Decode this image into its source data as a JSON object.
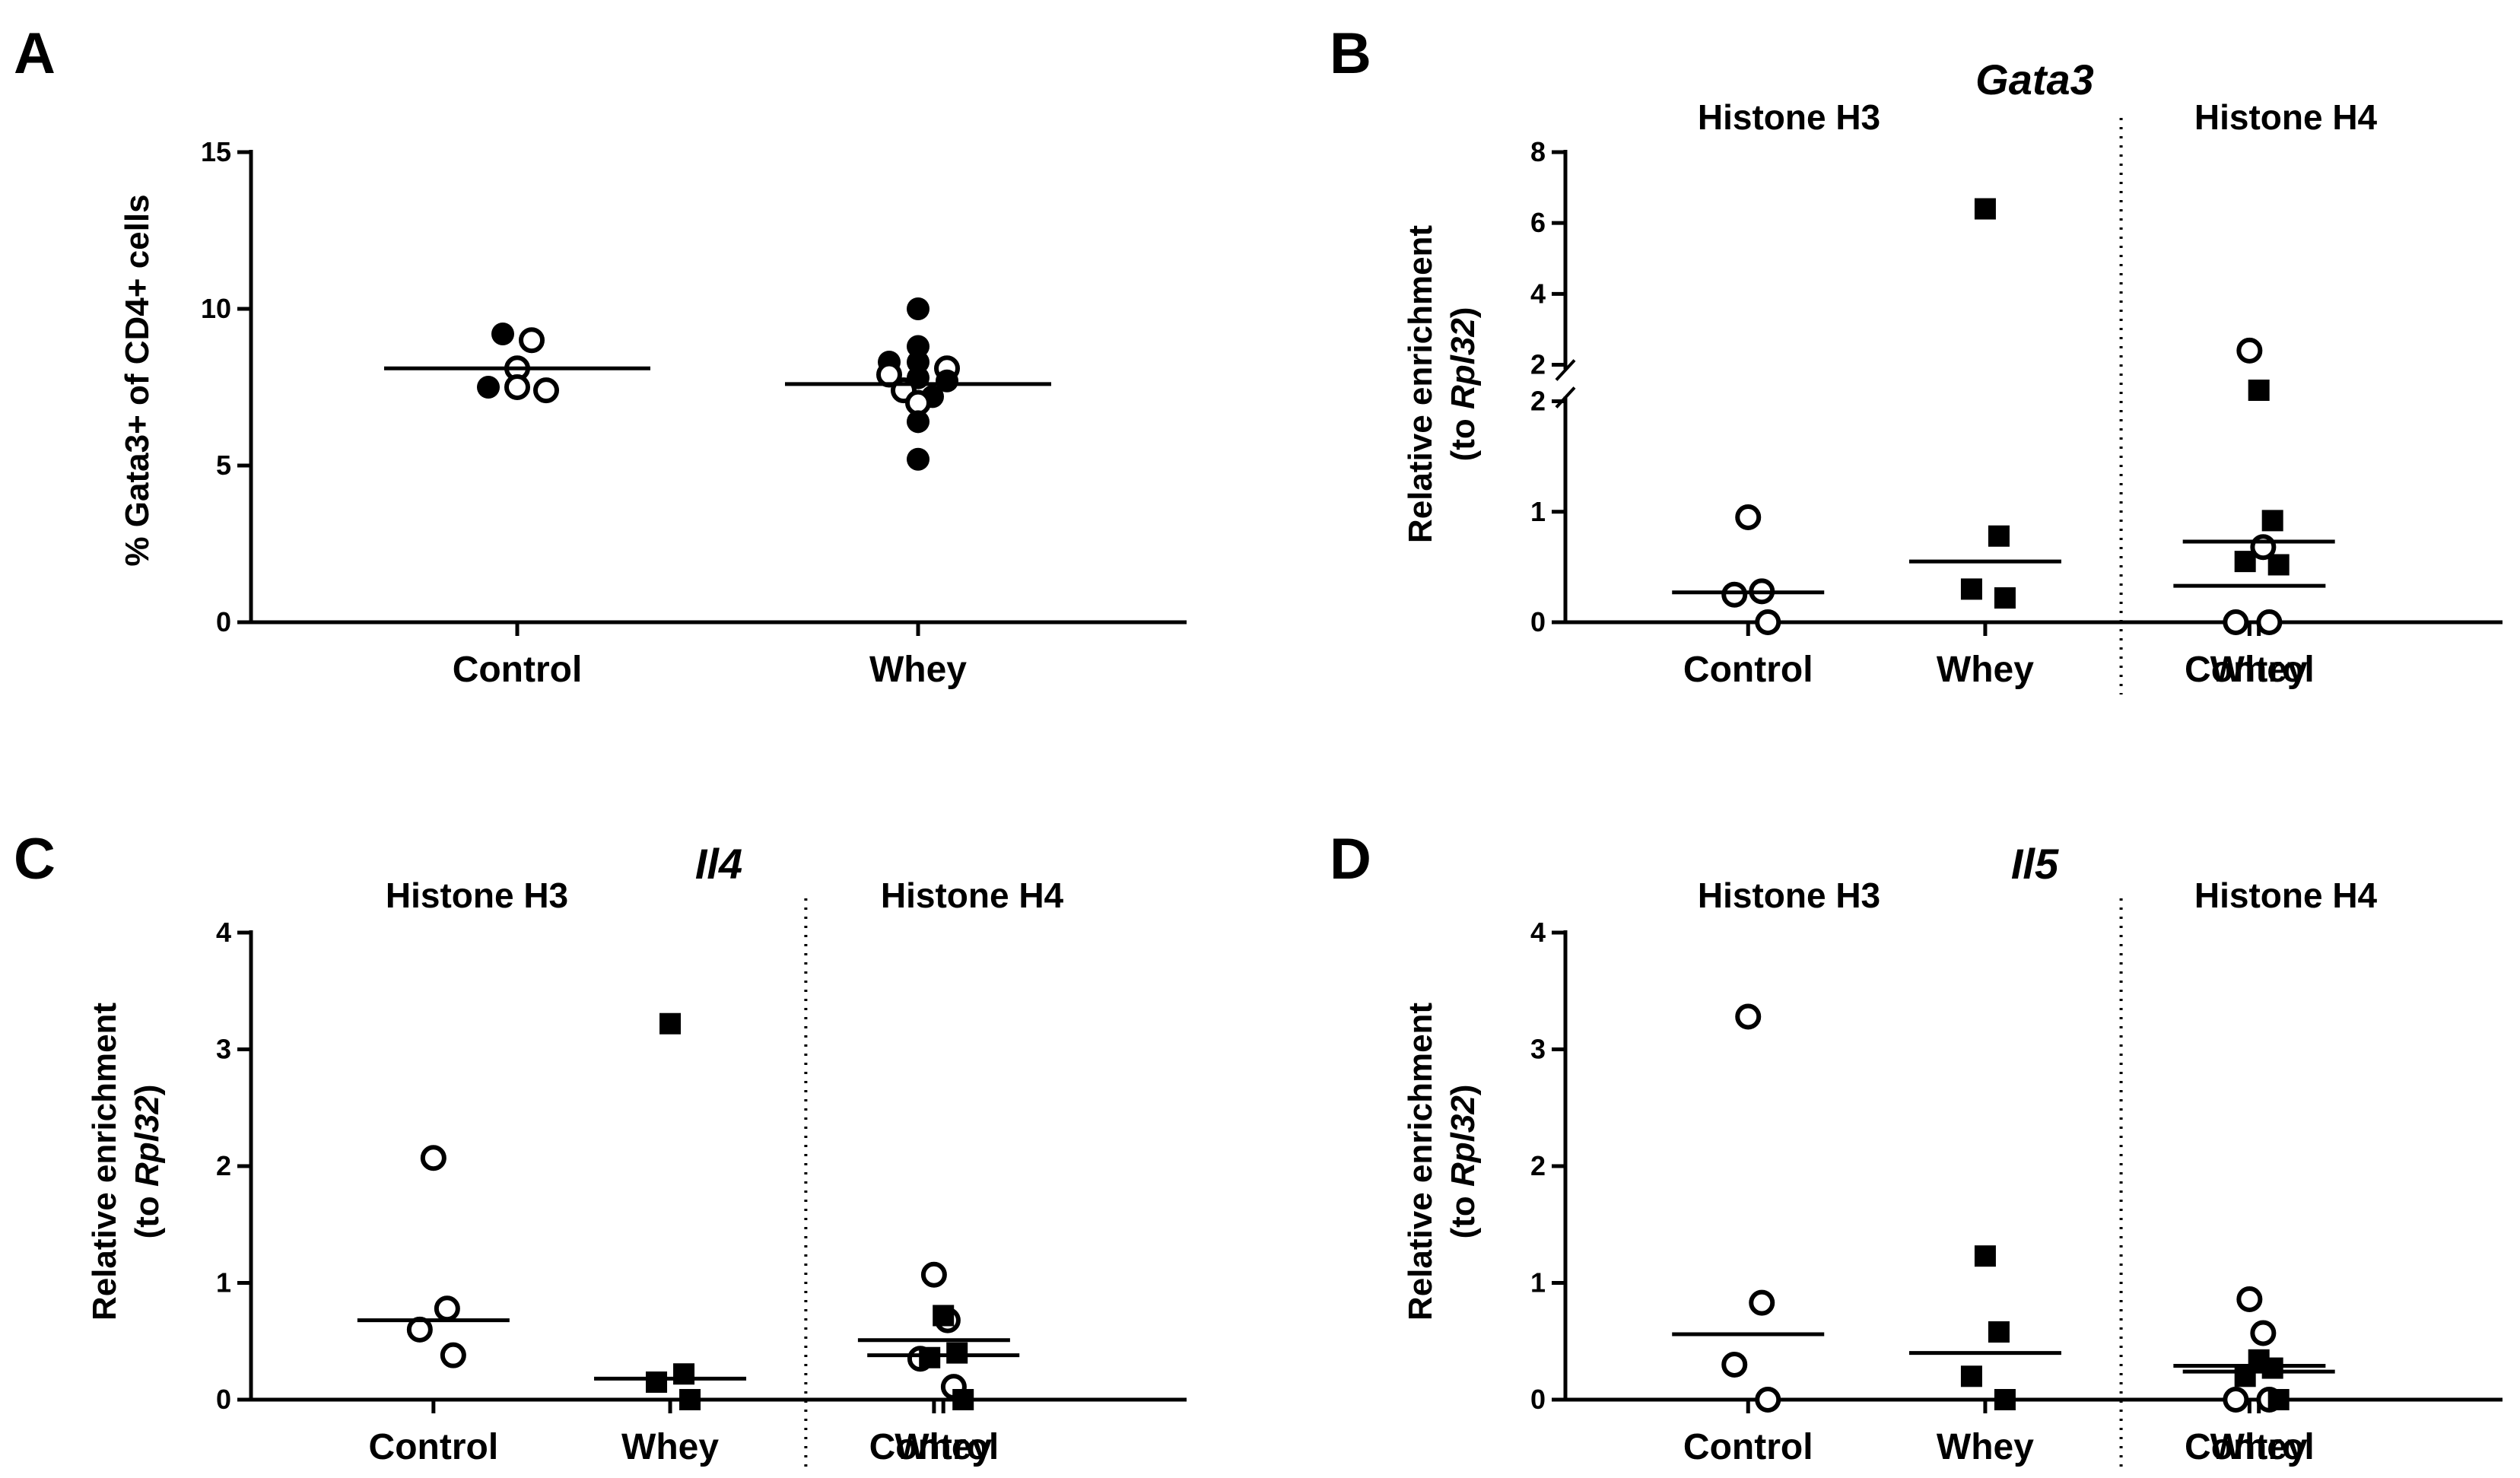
{
  "figure": {
    "panels": [
      "A",
      "B",
      "C",
      "D"
    ]
  },
  "chart_data": [
    {
      "panel": "A",
      "type": "scatter",
      "title": "",
      "ylabel": "% Gata3+ of CD4+ cells",
      "ylim": [
        0,
        15
      ],
      "yticks": [
        "0",
        "5",
        "10",
        "15"
      ],
      "categories": [
        "Control",
        "Whey"
      ],
      "series": [
        {
          "category": "Control",
          "points": [
            {
              "y": 9.2,
              "filled": true
            },
            {
              "y": 9.0,
              "filled": false
            },
            {
              "y": 8.1,
              "filled": false
            },
            {
              "y": 7.5,
              "filled": true
            },
            {
              "y": 7.5,
              "filled": false
            },
            {
              "y": 7.4,
              "filled": false
            }
          ],
          "mean": 8.1
        },
        {
          "category": "Whey",
          "points": [
            {
              "y": 10.0,
              "filled": true
            },
            {
              "y": 8.8,
              "filled": true
            },
            {
              "y": 8.3,
              "filled": true
            },
            {
              "y": 8.3,
              "filled": true
            },
            {
              "y": 8.1,
              "filled": false
            },
            {
              "y": 7.9,
              "filled": false
            },
            {
              "y": 7.8,
              "filled": true
            },
            {
              "y": 7.7,
              "filled": true
            },
            {
              "y": 7.4,
              "filled": false
            },
            {
              "y": 7.2,
              "filled": true
            },
            {
              "y": 7.0,
              "filled": false
            },
            {
              "y": 6.4,
              "filled": true
            },
            {
              "y": 5.2,
              "filled": true
            }
          ],
          "mean": 7.6
        }
      ]
    },
    {
      "panel": "B",
      "type": "scatter",
      "title": "Gata3",
      "ylabel": [
        "Relative enrichment",
        "(to ",
        "Rpl32",
        ")"
      ],
      "groups": [
        "Histone  H3",
        "Histone  H4"
      ],
      "categories": [
        "Control",
        "Whey",
        "Control",
        "Whey"
      ],
      "axis_break": true,
      "ylim_lower": [
        0,
        2
      ],
      "ylim_upper": [
        2,
        8
      ],
      "yticks_lower": [
        "0",
        "1",
        "2"
      ],
      "yticks_upper": [
        "2",
        "4",
        "6",
        "8"
      ],
      "series": [
        {
          "group": "Histone  H3",
          "category": "Control",
          "marker": "circle",
          "values": [
            0.95,
            0.28,
            0.25,
            0.0
          ],
          "mean": 0.27
        },
        {
          "group": "Histone  H3",
          "category": "Whey",
          "marker": "square",
          "values": [
            6.4,
            0.78,
            0.3,
            0.22
          ],
          "mean": 0.55
        },
        {
          "group": "Histone  H4",
          "category": "Control",
          "marker": "circle",
          "values": [
            2.4,
            0.68,
            0.0,
            0.0
          ],
          "mean": 0.33
        },
        {
          "group": "Histone  H4",
          "category": "Whey",
          "marker": "square",
          "values": [
            2.1,
            0.92,
            0.52,
            0.55
          ],
          "mean": 0.73
        }
      ]
    },
    {
      "panel": "C",
      "type": "scatter",
      "title": "Il4",
      "ylabel": [
        "Relative enrichment",
        "(to ",
        "Rpl32",
        ")"
      ],
      "groups": [
        "Histone  H3",
        "Histone  H4"
      ],
      "categories": [
        "Control",
        "Whey",
        "Control",
        "Whey"
      ],
      "ylim": [
        0,
        4
      ],
      "yticks": [
        "0",
        "1",
        "2",
        "3",
        "4"
      ],
      "series": [
        {
          "group": "Histone  H3",
          "category": "Control",
          "marker": "circle",
          "values": [
            2.07,
            0.78,
            0.6,
            0.38
          ],
          "mean": 0.68
        },
        {
          "group": "Histone  H3",
          "category": "Whey",
          "marker": "square",
          "values": [
            3.22,
            0.22,
            0.15,
            0.0
          ],
          "mean": 0.18
        },
        {
          "group": "Histone  H4",
          "category": "Control",
          "marker": "circle",
          "values": [
            1.07,
            0.68,
            0.35,
            0.11
          ],
          "mean": 0.51
        },
        {
          "group": "Histone  H4",
          "category": "Whey",
          "marker": "square",
          "values": [
            0.72,
            0.4,
            0.36,
            0.0
          ],
          "mean": 0.38
        }
      ]
    },
    {
      "panel": "D",
      "type": "scatter",
      "title": "Il5",
      "ylabel": [
        "Relative enrichment",
        "(to ",
        "Rpl32",
        ")"
      ],
      "groups": [
        "Histone  H3",
        "Histone  H4"
      ],
      "categories": [
        "Control",
        "Whey",
        "Control",
        "Whey"
      ],
      "ylim": [
        0,
        4
      ],
      "yticks": [
        "0",
        "1",
        "2",
        "3",
        "4"
      ],
      "series": [
        {
          "group": "Histone  H3",
          "category": "Control",
          "marker": "circle",
          "values": [
            3.28,
            0.83,
            0.3,
            0.0
          ],
          "mean": 0.56
        },
        {
          "group": "Histone  H3",
          "category": "Whey",
          "marker": "square",
          "values": [
            1.23,
            0.58,
            0.2,
            0.0
          ],
          "mean": 0.4
        },
        {
          "group": "Histone  H4",
          "category": "Control",
          "marker": "circle",
          "values": [
            0.86,
            0.57,
            0.0,
            0.0
          ],
          "mean": 0.29
        },
        {
          "group": "Histone  H4",
          "category": "Whey",
          "marker": "square",
          "values": [
            0.34,
            0.27,
            0.2,
            0.0
          ],
          "mean": 0.24
        }
      ]
    }
  ]
}
